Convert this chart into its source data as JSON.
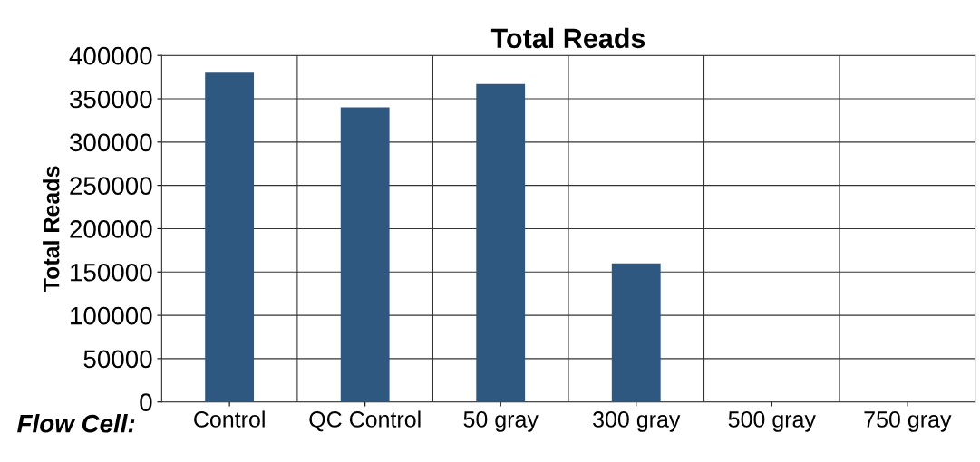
{
  "chart_data": {
    "type": "bar",
    "title": "Total Reads",
    "ylabel": "Total Reads",
    "xlabel": "Flow Cell:",
    "categories": [
      "Control",
      "QC Control",
      "50 gray",
      "300 gray",
      "500 gray",
      "750 gray"
    ],
    "values": [
      380000,
      340000,
      367000,
      160000,
      0,
      0
    ],
    "color": "#2e5880",
    "ylim": [
      0,
      400000
    ],
    "yticks": [
      0,
      50000,
      100000,
      150000,
      200000,
      250000,
      300000,
      350000,
      400000
    ],
    "grid": true,
    "legend": false
  }
}
